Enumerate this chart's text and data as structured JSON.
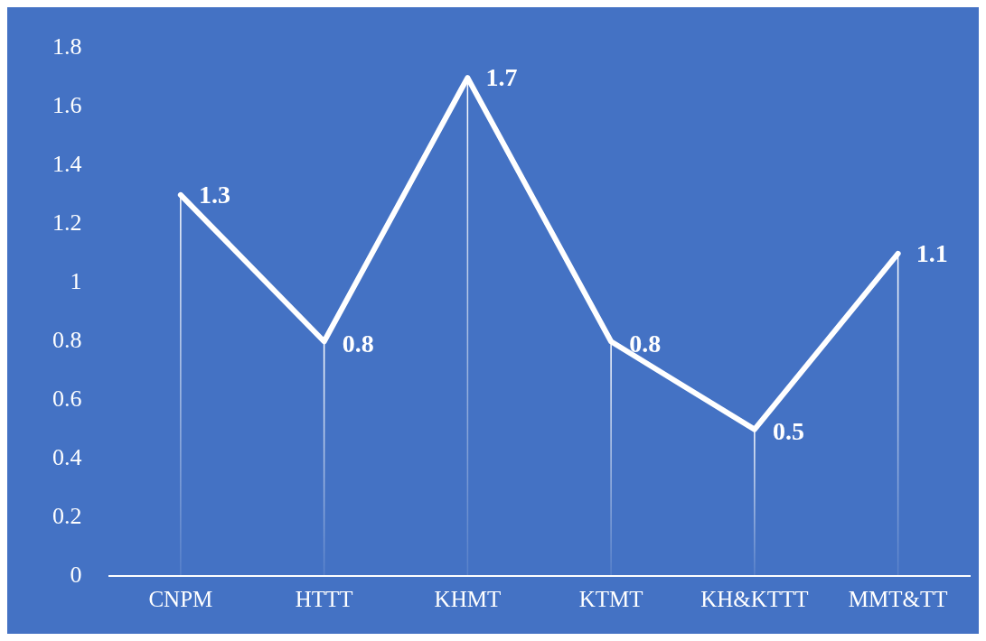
{
  "chart_data": {
    "type": "line",
    "categories": [
      "CNPM",
      "HTTT",
      "KHMT",
      "KTMT",
      "KH&KTTT",
      "MMT&TT"
    ],
    "series": [
      {
        "color": "#ffffff",
        "values": [
          1.3,
          0.8,
          1.7,
          0.8,
          0.5,
          1.1
        ]
      }
    ],
    "ylim": [
      0,
      1.8
    ],
    "yticks": [
      0,
      0.2,
      0.4,
      0.6,
      0.8,
      1,
      1.2,
      1.4,
      1.6,
      1.8
    ],
    "grid": "x",
    "legend": false,
    "marker": "none",
    "line_style": "solid",
    "data_labels": true
  }
}
